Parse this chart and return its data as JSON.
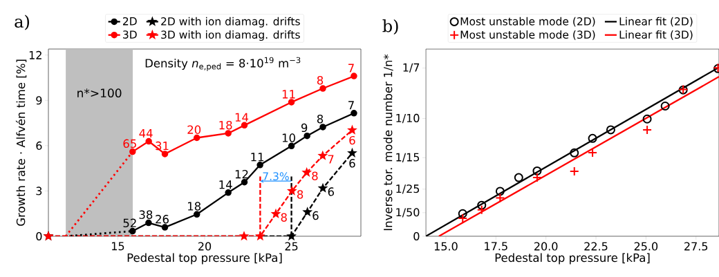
{
  "chart_data": [
    {
      "type": "line",
      "title": "a)",
      "xlabel": "Pedestal top pressure [kPa]",
      "ylabel": "Growth rate · Alfvén time [%]",
      "xlim": [
        11.0,
        29.0
      ],
      "xticks": [
        15,
        20,
        25
      ],
      "ylim": [
        0,
        12.4
      ],
      "yticks": [
        0,
        3,
        6,
        9,
        12
      ],
      "legend": "top",
      "series": [
        {
          "name": "2D",
          "color": "#000000",
          "marker": "circle",
          "line_style": "solid",
          "x": [
            15.85,
            16.77,
            17.71,
            19.55,
            21.36,
            22.29,
            23.19,
            25.0,
            25.9,
            26.81,
            28.6
          ],
          "values": [
            0.34,
            0.89,
            0.59,
            1.45,
            2.89,
            3.58,
            4.72,
            5.98,
            6.65,
            7.23,
            8.15
          ]
        },
        {
          "name": "2D with ion diamag. drifts",
          "color": "#000000",
          "marker": "star",
          "line_style": "dashed",
          "x": [
            11.0,
            25.0,
            25.92,
            26.81,
            28.5
          ],
          "values": [
            0,
            0,
            1.6,
            3.18,
            5.51
          ]
        },
        {
          "name": "3D",
          "color": "#ff0000",
          "marker": "circle",
          "line_style": "solid",
          "x": [
            15.85,
            16.78,
            17.71,
            19.55,
            21.36,
            22.29,
            25.0,
            26.81,
            28.6
          ],
          "values": [
            5.6,
            6.29,
            5.45,
            6.52,
            6.82,
            7.35,
            8.88,
            9.79,
            10.61
          ]
        },
        {
          "name": "3D with ion diamag. drifts",
          "color": "#ff0000",
          "marker": "star",
          "line_style": "dashed",
          "x": [
            11.0,
            22.27,
            23.2,
            24.1,
            25.03,
            25.88,
            26.8,
            28.5
          ],
          "values": [
            0,
            0,
            0,
            1.48,
            3.0,
            4.22,
            5.33,
            7.03
          ]
        },
        {
          "color": "#000000",
          "marker": "none",
          "line_style": "dotted",
          "x": [
            12.0,
            15.85
          ],
          "values": [
            0,
            0.34
          ]
        },
        {
          "color": "#ff0000",
          "marker": "none",
          "line_style": "dotted",
          "x": [
            12.0,
            15.85
          ],
          "values": [
            0,
            5.6
          ]
        },
        {
          "color": "#ff0000",
          "marker": "none",
          "line_style": "dashed",
          "x": [
            23.2,
            23.2
          ],
          "values": [
            0,
            3.96
          ]
        },
        {
          "color": "#000000",
          "marker": "none",
          "line_style": "dashed",
          "x": [
            25.0,
            25.0
          ],
          "values": [
            0,
            3.96
          ]
        }
      ],
      "bands": [
        {
          "axis": "x",
          "from": 12.0,
          "to": 15.86,
          "label": "n*>100",
          "color": "#bfbfbf"
        }
      ],
      "annotations": [
        "Density *n*$_{e,ped}$ = 8·10$^{19}$ m$^{−3}$",
        {
          "text": "7.3%",
          "x": 23.2,
          "y": 3.65
        },
        {
          "text": "52",
          "x": 15.85,
          "y": 0.34
        },
        {
          "text": "38",
          "x": 16.77,
          "y": 0.89
        },
        {
          "text": "26",
          "x": 17.71,
          "y": 0.59
        },
        {
          "text": "18",
          "x": 19.55,
          "y": 1.45
        },
        {
          "text": "14",
          "x": 21.36,
          "y": 2.89
        },
        {
          "text": "12",
          "x": 22.29,
          "y": 3.58
        },
        {
          "text": "11",
          "x": 23.19,
          "y": 4.72
        },
        {
          "text": "10",
          "x": 25.0,
          "y": 5.98
        },
        {
          "text": "9",
          "x": 25.9,
          "y": 6.65
        },
        {
          "text": "8",
          "x": 26.81,
          "y": 7.23
        },
        {
          "text": "7",
          "x": 28.6,
          "y": 8.15
        },
        {
          "text": "6",
          "x": 25.92,
          "y": 1.6
        },
        {
          "text": "6",
          "x": 26.81,
          "y": 3.18
        },
        {
          "text": "6",
          "x": 28.5,
          "y": 5.51
        },
        {
          "text": "65",
          "x": 15.85,
          "y": 5.6
        },
        {
          "text": "44",
          "x": 16.78,
          "y": 6.29
        },
        {
          "text": "31",
          "x": 17.71,
          "y": 5.45
        },
        {
          "text": "20",
          "x": 19.55,
          "y": 6.52
        },
        {
          "text": "18",
          "x": 21.36,
          "y": 6.82
        },
        {
          "text": "14",
          "x": 22.29,
          "y": 7.35
        },
        {
          "text": "11",
          "x": 25.0,
          "y": 8.88
        },
        {
          "text": "8",
          "x": 26.81,
          "y": 9.79
        },
        {
          "text": "7",
          "x": 28.6,
          "y": 10.61
        },
        {
          "text": "8",
          "x": 24.1,
          "y": 1.48
        },
        {
          "text": "8",
          "x": 25.03,
          "y": 3.0
        },
        {
          "text": "8",
          "x": 25.88,
          "y": 4.22
        },
        {
          "text": "7",
          "x": 26.8,
          "y": 5.33
        },
        {
          "text": "6",
          "x": 28.5,
          "y": 7.03
        }
      ]
    },
    {
      "type": "scatter",
      "title": "b)",
      "xlabel": "Pedestal top pressure [kPa]",
      "ylabel": "Inverse tor. mode number 1/n*",
      "xlim": [
        14.0,
        28.65
      ],
      "xticks": [
        {
          "value": 15,
          "label": "15.0"
        },
        {
          "value": 17.5,
          "label": "17.5"
        },
        {
          "value": 20,
          "label": "20.0"
        },
        {
          "value": 22.5,
          "label": "22.5"
        },
        {
          "value": 25,
          "label": "25.0"
        },
        {
          "value": 27.5,
          "label": "27.5"
        }
      ],
      "ylim": [
        0,
        0.159
      ],
      "yticks": [
        0,
        {
          "value": 0.02,
          "label": "1/50"
        },
        {
          "value": 0.04,
          "label": "1/25"
        },
        {
          "value": 0.0667,
          "label": "1/15"
        },
        {
          "value": 0.1,
          "label": "1/10"
        },
        {
          "value": 0.1429,
          "label": "1/7"
        }
      ],
      "legend": "top",
      "series": [
        {
          "name": "Most unstable mode (2D)",
          "type": "scatter",
          "color": "#000000",
          "marker": "circle",
          "x": [
            15.84,
            16.79,
            17.71,
            18.64,
            19.56,
            21.42,
            22.33,
            23.24,
            25.06,
            25.96,
            26.86,
            28.6
          ],
          "values": [
            0.0192,
            0.0263,
            0.0382,
            0.0498,
            0.0555,
            0.0708,
            0.0831,
            0.0904,
            0.0996,
            0.1106,
            0.1243,
            0.1424
          ]
        },
        {
          "name": "Linear fit (2D)",
          "type": "line",
          "color": "#000000",
          "x": [
            14.0,
            28.65
          ],
          "values": [
            0,
            0.1435
          ]
        },
        {
          "name": "Most unstable mode (3D)",
          "type": "scatter",
          "color": "#ff0000",
          "marker": "cross",
          "x": [
            15.84,
            16.79,
            17.71,
            19.56,
            21.42,
            22.33,
            25.06,
            26.86,
            28.6
          ],
          "values": [
            0.0153,
            0.0224,
            0.0325,
            0.0498,
            0.0551,
            0.071,
            0.0904,
            0.1247,
            0.143
          ]
        },
        {
          "name": "Linear fit (3D)",
          "type": "line",
          "color": "#ff0000",
          "x": [
            14.65,
            28.65
          ],
          "values": [
            0,
            0.1355
          ]
        }
      ]
    }
  ]
}
